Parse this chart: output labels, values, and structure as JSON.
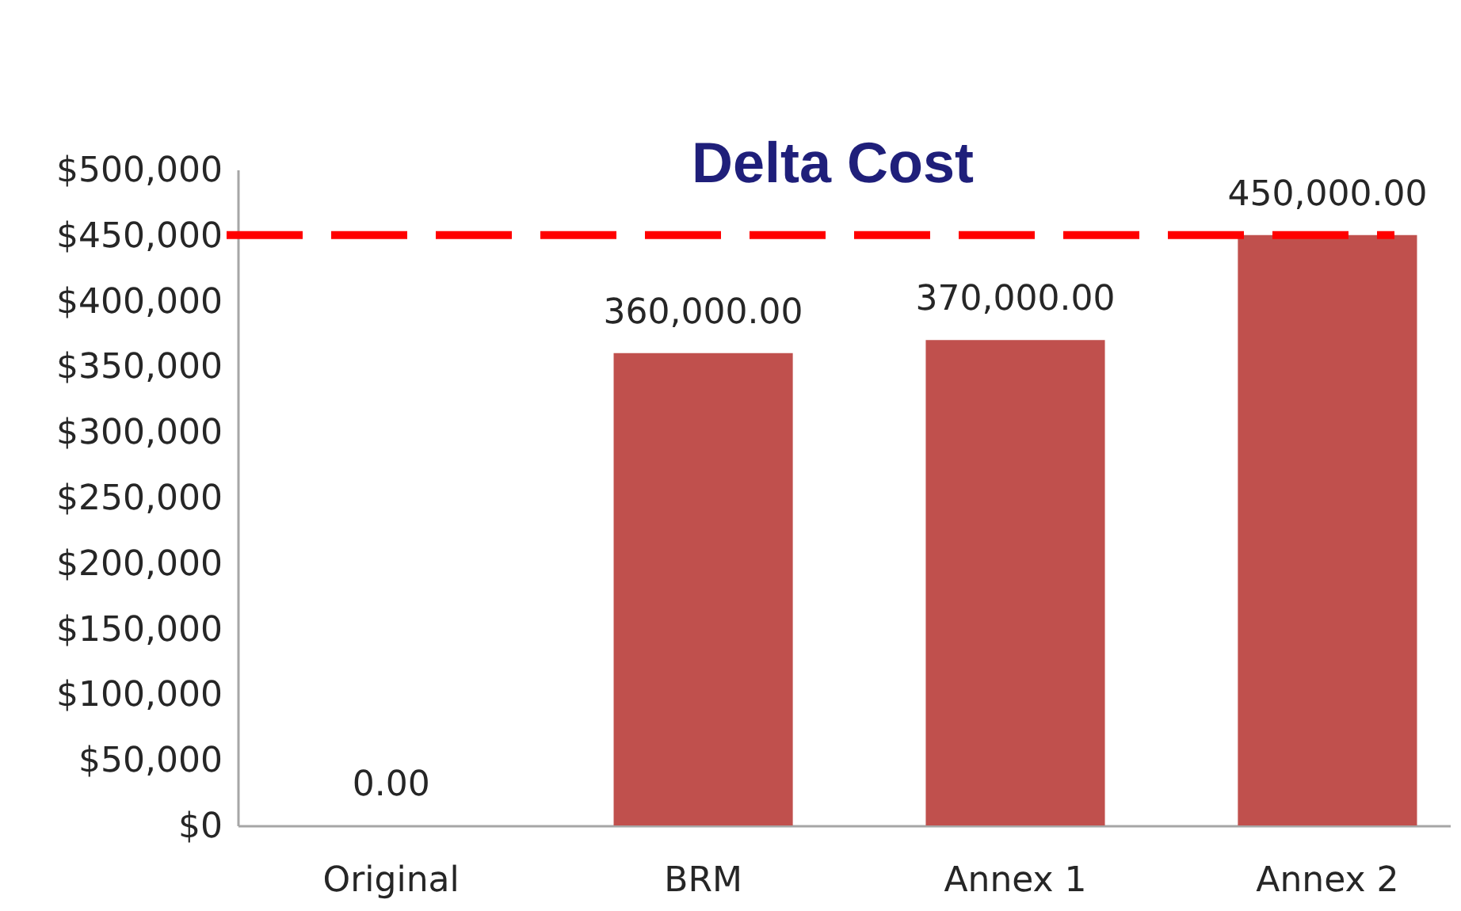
{
  "chart_data": {
    "type": "bar",
    "title": "Delta Cost",
    "categories": [
      "Original",
      "BRM",
      "Annex 1",
      "Annex 2"
    ],
    "values": [
      0,
      360000,
      370000,
      450000
    ],
    "value_labels": [
      "0.00",
      "360,000.00",
      "370,000.00",
      "450,000.00"
    ],
    "color": "#c0504d",
    "ylim": [
      0,
      500000
    ],
    "yticks": [
      {
        "value": 0,
        "label": "$0"
      },
      {
        "value": 50000,
        "label": "$50,000"
      },
      {
        "value": 100000,
        "label": "$100,000"
      },
      {
        "value": 150000,
        "label": "$150,000"
      },
      {
        "value": 200000,
        "label": "$200,000"
      },
      {
        "value": 250000,
        "label": "$250,000"
      },
      {
        "value": 300000,
        "label": "$300,000"
      },
      {
        "value": 350000,
        "label": "$350,000"
      },
      {
        "value": 400000,
        "label": "$400,000"
      },
      {
        "value": 450000,
        "label": "$450,000"
      },
      {
        "value": 500000,
        "label": "$500,000"
      }
    ],
    "ref_lines": [
      {
        "axis": "y",
        "value": 450000,
        "color": "#ff0000",
        "line_style": "dashed"
      }
    ],
    "grid": false
  }
}
